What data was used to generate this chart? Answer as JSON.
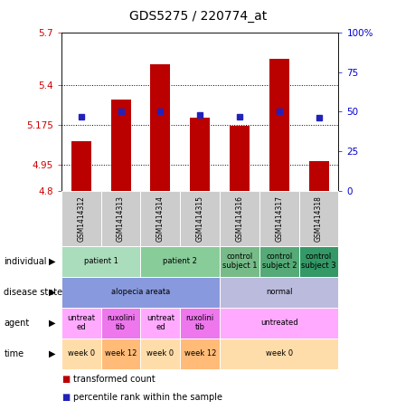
{
  "title": "GDS5275 / 220774_at",
  "samples": [
    "GSM1414312",
    "GSM1414313",
    "GSM1414314",
    "GSM1414315",
    "GSM1414316",
    "GSM1414317",
    "GSM1414318"
  ],
  "bar_values": [
    5.08,
    5.32,
    5.52,
    5.215,
    5.17,
    5.55,
    4.97
  ],
  "percentile_values": [
    47,
    50,
    50,
    48,
    47,
    50,
    46
  ],
  "ymin": 4.8,
  "ymax": 5.7,
  "yticks": [
    4.8,
    4.95,
    5.175,
    5.4,
    5.7
  ],
  "ytick_labels": [
    "4.8",
    "4.95",
    "5.175",
    "5.4",
    "5.7"
  ],
  "right_yticks": [
    0,
    25,
    50,
    75,
    100
  ],
  "right_ytick_labels": [
    "0",
    "25",
    "50",
    "75",
    "100%"
  ],
  "bar_color": "#bb0000",
  "dot_color": "#2222bb",
  "bar_width": 0.5,
  "rows": [
    {
      "label": "individual",
      "cells": [
        {
          "cols": [
            0,
            1
          ],
          "text": "patient 1",
          "color": "#aaddbb"
        },
        {
          "cols": [
            2,
            3
          ],
          "text": "patient 2",
          "color": "#88cc99"
        },
        {
          "cols": [
            4,
            4
          ],
          "text": "control\nsubject 1",
          "color": "#77bb88"
        },
        {
          "cols": [
            5,
            5
          ],
          "text": "control\nsubject 2",
          "color": "#55aa77"
        },
        {
          "cols": [
            6,
            6
          ],
          "text": "control\nsubject 3",
          "color": "#339966"
        }
      ]
    },
    {
      "label": "disease state",
      "cells": [
        {
          "cols": [
            0,
            3
          ],
          "text": "alopecia areata",
          "color": "#8899dd"
        },
        {
          "cols": [
            4,
            6
          ],
          "text": "normal",
          "color": "#bbbbdd"
        }
      ]
    },
    {
      "label": "agent",
      "cells": [
        {
          "cols": [
            0,
            0
          ],
          "text": "untreat\ned",
          "color": "#ffaaff"
        },
        {
          "cols": [
            1,
            1
          ],
          "text": "ruxolini\ntib",
          "color": "#ee77ee"
        },
        {
          "cols": [
            2,
            2
          ],
          "text": "untreat\ned",
          "color": "#ffaaff"
        },
        {
          "cols": [
            3,
            3
          ],
          "text": "ruxolini\ntib",
          "color": "#ee77ee"
        },
        {
          "cols": [
            4,
            6
          ],
          "text": "untreated",
          "color": "#ffaaff"
        }
      ]
    },
    {
      "label": "time",
      "cells": [
        {
          "cols": [
            0,
            0
          ],
          "text": "week 0",
          "color": "#ffddaa"
        },
        {
          "cols": [
            1,
            1
          ],
          "text": "week 12",
          "color": "#ffbb77"
        },
        {
          "cols": [
            2,
            2
          ],
          "text": "week 0",
          "color": "#ffddaa"
        },
        {
          "cols": [
            3,
            3
          ],
          "text": "week 12",
          "color": "#ffbb77"
        },
        {
          "cols": [
            4,
            6
          ],
          "text": "week 0",
          "color": "#ffddaa"
        }
      ]
    }
  ],
  "sample_bg": "#cccccc",
  "fig_width": 4.38,
  "fig_height": 4.53,
  "dpi": 100
}
